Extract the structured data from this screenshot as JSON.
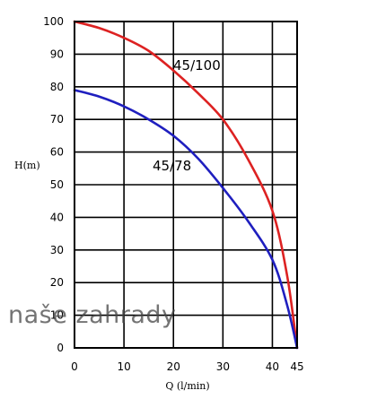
{
  "chart_data": {
    "type": "line",
    "xlabel": "Q (l/min)",
    "ylabel": "H(m)",
    "xlim": [
      0,
      45
    ],
    "ylim": [
      0,
      100
    ],
    "x_ticks": [
      0,
      10,
      20,
      30,
      40,
      45
    ],
    "y_ticks": [
      0,
      10,
      20,
      30,
      40,
      50,
      60,
      70,
      80,
      90,
      100
    ],
    "grid": true,
    "series": [
      {
        "name": "45/100",
        "color": "#dd2222",
        "points": [
          [
            0,
            100
          ],
          [
            5,
            98
          ],
          [
            10,
            95
          ],
          [
            15,
            91
          ],
          [
            20,
            85
          ],
          [
            25,
            78
          ],
          [
            30,
            70
          ],
          [
            35,
            58
          ],
          [
            40,
            42
          ],
          [
            43,
            22
          ],
          [
            45,
            0
          ]
        ]
      },
      {
        "name": "45/78",
        "color": "#1f1fbf",
        "points": [
          [
            0,
            79
          ],
          [
            5,
            77
          ],
          [
            10,
            74
          ],
          [
            15,
            70
          ],
          [
            20,
            65
          ],
          [
            25,
            58
          ],
          [
            30,
            49
          ],
          [
            35,
            39
          ],
          [
            40,
            27
          ],
          [
            43,
            13
          ],
          [
            45,
            0
          ]
        ]
      }
    ]
  },
  "watermark": "naše zahrady"
}
